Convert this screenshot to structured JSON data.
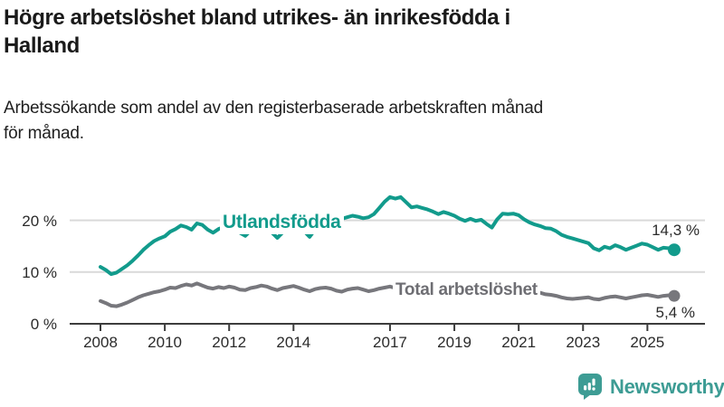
{
  "header": {
    "title_lines": [
      "Högre arbetslöshet bland utrikes- än inrikesfödda i",
      "Halland"
    ],
    "subtitle_lines": [
      "Arbetssökande som andel av den registerbaserade arbetskraften månad",
      "för månad."
    ]
  },
  "chart_data": {
    "type": "line",
    "title": "Arbetssökande som andel av den registerbaserade arbetskraften månad för månad",
    "x_start_year": 2008,
    "points_per_year": 6,
    "x_end": "2025-11",
    "xlabel": "",
    "ylabel": "",
    "ylim": [
      0,
      26
    ],
    "grid": "horizontal",
    "axis_color": "#3c3c3c",
    "grid_color": "#d9d9d9",
    "x_tick_years": [
      2008,
      2010,
      2012,
      2014,
      2017,
      2019,
      2021,
      2023,
      2025
    ],
    "y_ticks": [
      {
        "value": 0,
        "label": "0 %"
      },
      {
        "value": 10,
        "label": "10 %"
      },
      {
        "value": 20,
        "label": "20 %"
      }
    ],
    "series": [
      {
        "name": "Utlandsfödda",
        "color": "#129b8c",
        "end_label": "14,3 %",
        "end_value": 14.3,
        "values": [
          11.0,
          10.4,
          9.6,
          9.9,
          10.6,
          11.3,
          12.2,
          13.2,
          14.3,
          15.2,
          16.0,
          16.5,
          16.9,
          17.8,
          18.3,
          19.0,
          18.7,
          18.2,
          19.4,
          19.1,
          18.2,
          17.6,
          18.3,
          18.7,
          19.0,
          18.6,
          17.6,
          17.0,
          18.0,
          18.8,
          19.3,
          18.8,
          17.6,
          16.6,
          17.7,
          18.9,
          19.5,
          19.0,
          17.9,
          16.8,
          18.2,
          19.6,
          20.3,
          21.0,
          20.8,
          20.3,
          20.6,
          20.9,
          20.7,
          20.4,
          20.6,
          21.2,
          22.4,
          23.6,
          24.5,
          24.2,
          24.5,
          23.5,
          22.5,
          22.7,
          22.4,
          22.1,
          21.7,
          21.2,
          21.6,
          21.3,
          20.9,
          20.3,
          19.9,
          20.3,
          19.9,
          20.1,
          19.3,
          18.6,
          20.2,
          21.3,
          21.2,
          21.3,
          21.0,
          20.2,
          19.6,
          19.2,
          18.9,
          18.5,
          18.4,
          17.9,
          17.2,
          16.8,
          16.5,
          16.2,
          15.9,
          15.6,
          14.6,
          14.2,
          14.9,
          14.6,
          15.2,
          14.8,
          14.3,
          14.7,
          15.1,
          15.5,
          15.3,
          14.8,
          14.3,
          14.7,
          14.6,
          14.3
        ]
      },
      {
        "name": "Total arbetslöshet",
        "color": "#77777c",
        "end_label": "5,4 %",
        "end_value": 5.4,
        "values": [
          4.4,
          4.0,
          3.5,
          3.4,
          3.7,
          4.1,
          4.6,
          5.1,
          5.5,
          5.8,
          6.1,
          6.3,
          6.6,
          7.0,
          6.9,
          7.3,
          7.6,
          7.4,
          7.8,
          7.4,
          7.0,
          6.8,
          7.1,
          6.9,
          7.2,
          7.0,
          6.6,
          6.5,
          6.9,
          7.1,
          7.4,
          7.2,
          6.8,
          6.5,
          6.9,
          7.1,
          7.3,
          7.0,
          6.6,
          6.3,
          6.7,
          6.9,
          7.0,
          6.8,
          6.4,
          6.2,
          6.6,
          6.8,
          6.9,
          6.6,
          6.3,
          6.5,
          6.8,
          7.0,
          7.2,
          6.9,
          6.5,
          6.3,
          6.6,
          6.8,
          6.9,
          6.6,
          6.2,
          6.0,
          6.3,
          6.5,
          6.6,
          6.3,
          6.1,
          6.3,
          6.2,
          6.4,
          6.3,
          6.2,
          7.2,
          7.7,
          7.6,
          7.5,
          7.4,
          7.0,
          6.6,
          6.3,
          6.0,
          5.7,
          5.6,
          5.4,
          5.1,
          4.9,
          4.8,
          4.9,
          5.0,
          5.1,
          4.8,
          4.7,
          5.0,
          5.2,
          5.3,
          5.1,
          4.9,
          5.1,
          5.3,
          5.5,
          5.6,
          5.4,
          5.2,
          5.4,
          5.5,
          5.4
        ]
      }
    ]
  },
  "label_colors": {
    "series0": "#129b8c",
    "series1": "#6e6e73"
  },
  "footer": {
    "brand": "Newsworthy",
    "brand_color": "#3d9c94"
  }
}
